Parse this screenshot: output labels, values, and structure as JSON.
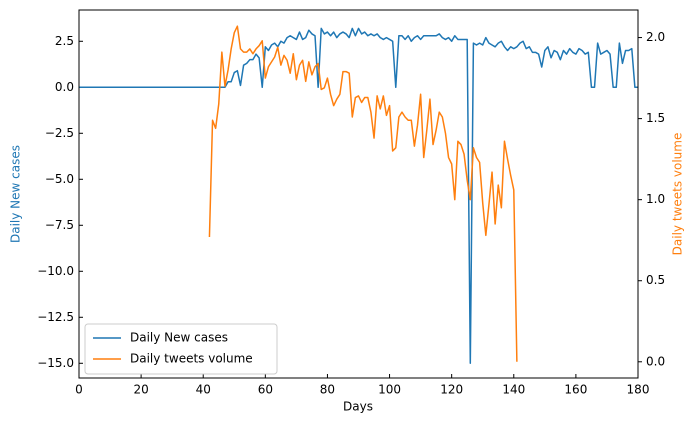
{
  "chart_data": {
    "type": "line",
    "xlabel": "Days",
    "ylabel": "Daily New cases",
    "y2label": "Daily tweets volume",
    "xlim": [
      0,
      180
    ],
    "xticks": [
      0,
      20,
      40,
      60,
      80,
      100,
      120,
      140,
      160,
      180
    ],
    "ylim": [
      -15.8,
      4.2
    ],
    "yticks": [
      2.5,
      {
        "value": 0,
        "label": "0.0"
      },
      {
        "value": -2.5,
        "label": "−2.5"
      },
      {
        "value": -5,
        "label": "−5.0"
      },
      {
        "value": -7.5,
        "label": "−7.5"
      },
      {
        "value": -10,
        "label": "−10.0"
      },
      {
        "value": -12.5,
        "label": "−12.5"
      },
      {
        "value": -15,
        "label": "−15.0"
      }
    ],
    "y2lim": [
      -0.1,
      2.17
    ],
    "y2ticks": [
      {
        "value": 0,
        "label": "0.0"
      },
      {
        "value": 0.5,
        "label": "0.5"
      },
      {
        "value": 1,
        "label": "1.0"
      },
      {
        "value": 1.5,
        "label": "1.5"
      },
      {
        "value": 2,
        "label": "2.0"
      }
    ],
    "legend": "lower left",
    "series": [
      {
        "name": "Daily New cases",
        "color": "#1f77b4",
        "axis": "y",
        "x": [
          0,
          1,
          2,
          3,
          4,
          5,
          6,
          7,
          8,
          9,
          10,
          11,
          12,
          13,
          14,
          15,
          16,
          17,
          18,
          19,
          20,
          21,
          22,
          23,
          24,
          25,
          26,
          27,
          28,
          29,
          30,
          31,
          32,
          33,
          34,
          35,
          36,
          37,
          38,
          39,
          40,
          41,
          42,
          43,
          44,
          45,
          46,
          47,
          48,
          49,
          50,
          51,
          52,
          53,
          54,
          55,
          56,
          57,
          58,
          59,
          60,
          61,
          62,
          63,
          64,
          65,
          66,
          67,
          68,
          69,
          70,
          71,
          72,
          73,
          74,
          75,
          76,
          77,
          78,
          79,
          80,
          81,
          82,
          83,
          84,
          85,
          86,
          87,
          88,
          89,
          90,
          91,
          92,
          93,
          94,
          95,
          96,
          97,
          98,
          99,
          100,
          101,
          102,
          103,
          104,
          105,
          106,
          107,
          108,
          109,
          110,
          111,
          112,
          113,
          114,
          115,
          116,
          117,
          118,
          119,
          120,
          121,
          122,
          123,
          124,
          125,
          126,
          127,
          128,
          129,
          130,
          131,
          132,
          133,
          134,
          135,
          136,
          137,
          138,
          139,
          140,
          141,
          142,
          143,
          144,
          145,
          146,
          147,
          148,
          149,
          150,
          151,
          152,
          153,
          154,
          155,
          156,
          157,
          158,
          159,
          160,
          161,
          162,
          163,
          164,
          165,
          166,
          167,
          168,
          169,
          170,
          171,
          172,
          173,
          174,
          175,
          176,
          177,
          178,
          179,
          180
        ],
        "values": [
          0,
          0,
          0,
          0,
          0,
          0,
          0,
          0,
          0,
          0,
          0,
          0,
          0,
          0,
          0,
          0,
          0,
          0,
          0,
          0,
          0,
          0,
          0,
          0,
          0,
          0,
          0,
          0,
          0,
          0,
          0,
          0,
          0,
          0,
          0,
          0,
          0,
          0,
          0,
          0,
          0,
          0,
          0,
          0,
          0,
          0,
          0,
          0,
          0.3,
          0.3,
          0.8,
          0.9,
          0.1,
          1.2,
          1.3,
          1.5,
          1.5,
          1.8,
          1.6,
          0.0,
          2.2,
          2.0,
          2.3,
          2.4,
          2.2,
          2.5,
          2.4,
          2.7,
          2.8,
          2.7,
          2.6,
          3.0,
          2.6,
          2.7,
          3.1,
          2.9,
          2.8,
          0.0,
          3.2,
          2.9,
          3.0,
          2.8,
          3.0,
          2.7,
          2.9,
          3.0,
          2.9,
          2.7,
          3.2,
          2.8,
          3.2,
          2.9,
          3.0,
          2.8,
          2.9,
          2.8,
          2.9,
          2.7,
          2.6,
          2.7,
          2.6,
          2.5,
          0.0,
          2.8,
          2.8,
          2.6,
          2.8,
          2.5,
          2.7,
          2.8,
          2.6,
          2.8,
          2.8,
          2.8,
          2.8,
          2.8,
          2.9,
          2.7,
          2.6,
          2.7,
          2.5,
          2.8,
          2.6,
          2.6,
          2.6,
          2.6,
          -15.0,
          2.4,
          2.3,
          2.4,
          2.3,
          2.7,
          2.4,
          2.3,
          2.2,
          2.4,
          2.5,
          2.2,
          2.0,
          2.2,
          2.1,
          2.2,
          2.4,
          2.5,
          2.1,
          2.2,
          1.9,
          1.9,
          1.8,
          1.1,
          2.0,
          2.2,
          1.6,
          2.0,
          1.9,
          1.5,
          2.0,
          1.8,
          2.1,
          1.9,
          1.8,
          2.1,
          2.0,
          1.8,
          1.9,
          0.0,
          0.0,
          2.4,
          1.8,
          1.9,
          2.0,
          1.8,
          0.0,
          0.0,
          2.4,
          1.3,
          2.0,
          2.0,
          2.1,
          0.0,
          0.0
        ]
      },
      {
        "name": "Daily tweets volume",
        "color": "#ff7f0e",
        "axis": "y2",
        "x": [
          42,
          43,
          44,
          45,
          46,
          47,
          48,
          49,
          50,
          51,
          52,
          53,
          54,
          55,
          56,
          57,
          58,
          59,
          60,
          61,
          62,
          63,
          64,
          65,
          66,
          67,
          68,
          69,
          70,
          71,
          72,
          73,
          74,
          75,
          76,
          77,
          78,
          79,
          80,
          81,
          82,
          83,
          84,
          85,
          86,
          87,
          88,
          89,
          90,
          91,
          92,
          93,
          94,
          95,
          96,
          97,
          98,
          99,
          100,
          101,
          102,
          103,
          104,
          105,
          106,
          107,
          108,
          109,
          110,
          111,
          112,
          113,
          114,
          115,
          116,
          117,
          118,
          119,
          120,
          121,
          122,
          123,
          124,
          125,
          126,
          127,
          128,
          129,
          130,
          131,
          132,
          133,
          134,
          135,
          136,
          137,
          138,
          139,
          140,
          141
        ],
        "values": [
          0.77,
          1.49,
          1.44,
          1.59,
          1.91,
          1.7,
          1.8,
          1.93,
          2.03,
          2.07,
          1.93,
          1.91,
          1.91,
          1.93,
          1.9,
          1.93,
          1.95,
          1.98,
          1.75,
          1.82,
          1.85,
          1.88,
          1.94,
          1.83,
          1.89,
          1.86,
          1.78,
          1.9,
          1.74,
          1.83,
          1.86,
          1.73,
          1.85,
          1.77,
          1.82,
          1.84,
          1.68,
          1.69,
          1.75,
          1.65,
          1.58,
          1.62,
          1.65,
          1.79,
          1.79,
          1.78,
          1.51,
          1.63,
          1.64,
          1.6,
          1.63,
          1.63,
          1.54,
          1.38,
          1.64,
          1.56,
          1.64,
          1.52,
          1.58,
          1.3,
          1.32,
          1.51,
          1.54,
          1.51,
          1.49,
          1.49,
          1.33,
          1.46,
          1.65,
          1.26,
          1.43,
          1.62,
          1.34,
          1.43,
          1.54,
          1.51,
          1.41,
          1.26,
          1.22,
          1.0,
          1.36,
          1.34,
          1.28,
          1.12,
          1.0,
          1.32,
          1.26,
          1.23,
          0.98,
          0.78,
          0.97,
          1.17,
          0.85,
          1.09,
          0.95,
          1.36,
          1.25,
          1.15,
          1.06,
          0.0
        ]
      }
    ]
  }
}
